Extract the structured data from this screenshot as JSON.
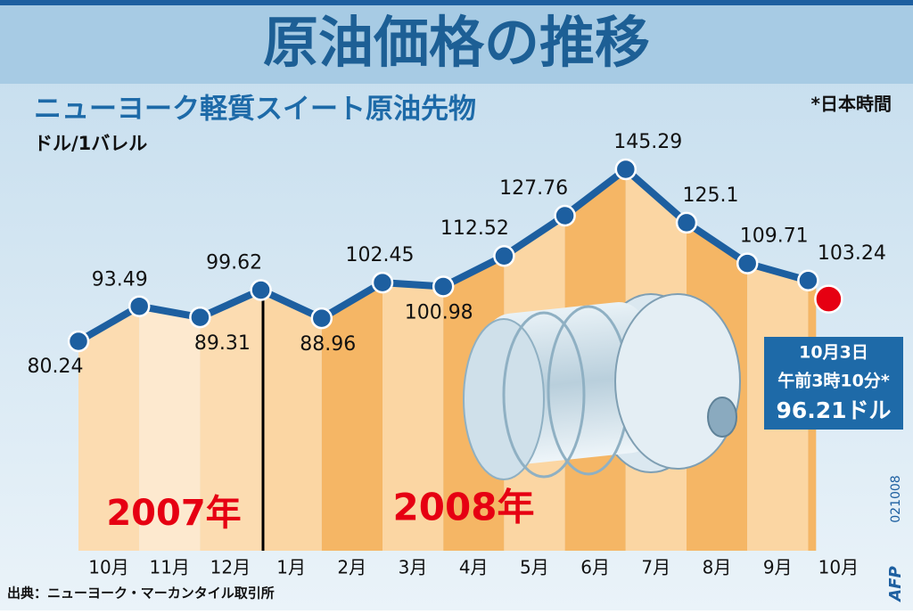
{
  "chart_data": {
    "type": "line",
    "title": "原油価格の推移",
    "subtitle": "ニューヨーク軽質スイート原油先物",
    "unit_label": "ドル/1バレル",
    "time_note": "*日本時間",
    "categories": [
      "10月",
      "11月",
      "12月",
      "1月",
      "2月",
      "3月",
      "4月",
      "5月",
      "6月",
      "7月",
      "8月",
      "9月",
      "10月"
    ],
    "values": [
      80.24,
      93.49,
      89.31,
      99.62,
      88.96,
      102.45,
      100.98,
      112.52,
      127.76,
      145.29,
      125.1,
      109.71,
      103.24
    ],
    "color": "#1d5fa0",
    "year_labels": [
      "2007年",
      "2008年"
    ],
    "latest": {
      "value": 96.21,
      "color": "#e60012",
      "date_label": "10月3日",
      "time_label": "午前3時10分*",
      "value_label": "96.21ドル"
    },
    "source": "出典：ニューヨーク・マーカンタイル取引所",
    "credit": "AFP",
    "code": "021008"
  }
}
